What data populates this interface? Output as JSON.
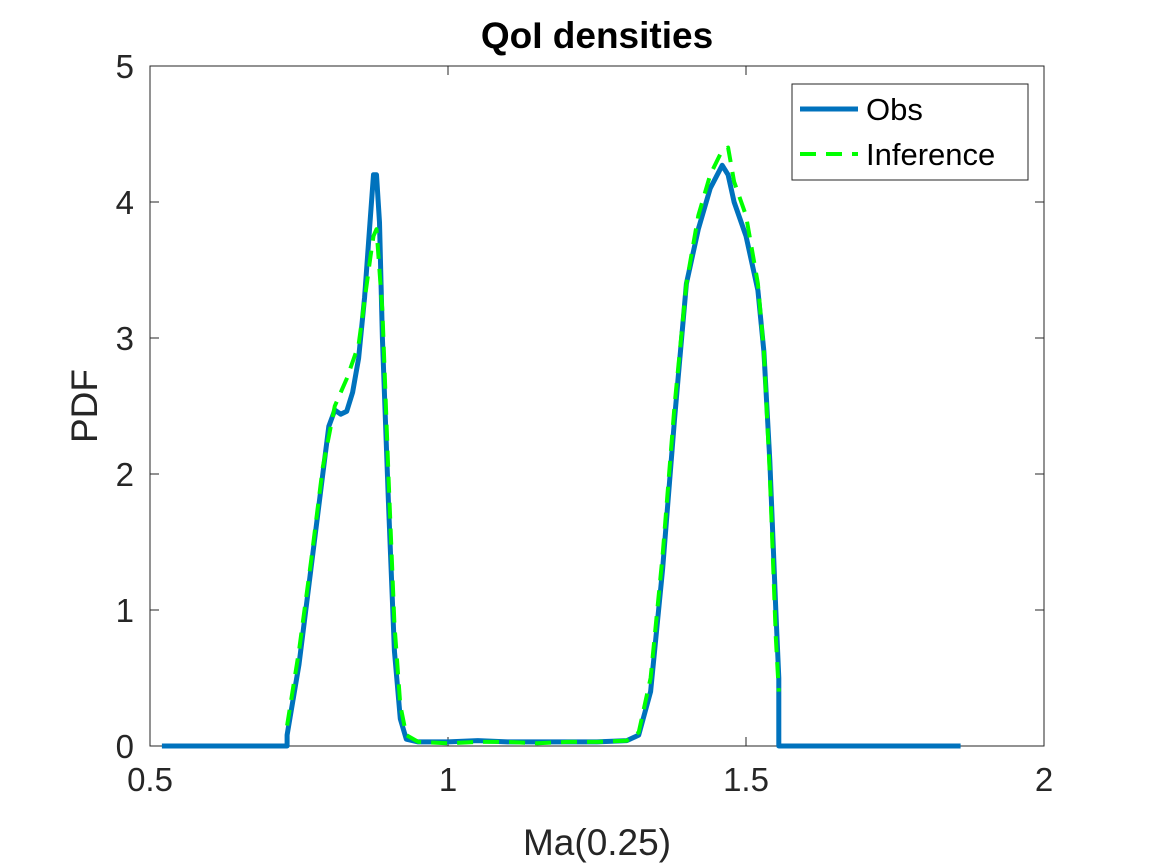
{
  "chart_data": {
    "type": "line",
    "title": "QoI densities",
    "xlabel": "Ma(0.25)",
    "ylabel": "PDF",
    "xlim": [
      0.5,
      2
    ],
    "ylim": [
      0,
      5
    ],
    "xticks": [
      0.5,
      1,
      1.5,
      2
    ],
    "xtick_labels": [
      "0.5",
      "1",
      "1.5",
      "2"
    ],
    "yticks": [
      0,
      1,
      2,
      3,
      4,
      5
    ],
    "ytick_labels": [
      "0",
      "1",
      "2",
      "3",
      "4",
      "5"
    ],
    "grid": false,
    "legend_position": "top-right",
    "series": [
      {
        "name": "Obs",
        "color": "#0072bd",
        "style": "solid",
        "x": [
          0.52,
          0.73,
          0.73,
          0.75,
          0.77,
          0.79,
          0.8,
          0.81,
          0.82,
          0.83,
          0.84,
          0.85,
          0.86,
          0.87,
          0.875,
          0.88,
          0.885,
          0.89,
          0.9,
          0.91,
          0.92,
          0.93,
          0.95,
          1.0,
          1.05,
          1.1,
          1.15,
          1.2,
          1.25,
          1.3,
          1.32,
          1.34,
          1.36,
          1.38,
          1.4,
          1.42,
          1.44,
          1.46,
          1.47,
          1.48,
          1.5,
          1.52,
          1.53,
          1.54,
          1.55,
          1.555,
          1.555,
          1.86
        ],
        "y": [
          0,
          0,
          0.08,
          0.6,
          1.3,
          2.0,
          2.35,
          2.47,
          2.44,
          2.46,
          2.6,
          2.85,
          3.3,
          3.9,
          4.2,
          4.2,
          3.85,
          3.0,
          1.8,
          0.7,
          0.2,
          0.05,
          0.03,
          0.03,
          0.04,
          0.03,
          0.03,
          0.03,
          0.03,
          0.04,
          0.08,
          0.4,
          1.3,
          2.4,
          3.4,
          3.8,
          4.1,
          4.27,
          4.2,
          4.0,
          3.75,
          3.35,
          2.9,
          2.1,
          1.0,
          0.5,
          0,
          0
        ]
      },
      {
        "name": "Inference",
        "color": "#00ff00",
        "style": "dashed",
        "x": [
          0.73,
          0.75,
          0.77,
          0.79,
          0.81,
          0.83,
          0.85,
          0.87,
          0.875,
          0.88,
          0.89,
          0.9,
          0.91,
          0.92,
          0.93,
          0.95,
          1.0,
          1.05,
          1.1,
          1.15,
          1.2,
          1.25,
          1.3,
          1.32,
          1.34,
          1.36,
          1.38,
          1.4,
          1.42,
          1.44,
          1.46,
          1.47,
          1.48,
          1.5,
          1.52,
          1.53,
          1.54,
          1.55,
          1.555
        ],
        "y": [
          0.15,
          0.7,
          1.35,
          2.05,
          2.5,
          2.7,
          2.95,
          3.6,
          3.75,
          3.8,
          3.2,
          2.0,
          0.9,
          0.3,
          0.08,
          0.03,
          0.02,
          0.03,
          0.03,
          0.02,
          0.03,
          0.03,
          0.04,
          0.1,
          0.5,
          1.4,
          2.5,
          3.4,
          3.9,
          4.2,
          4.38,
          4.4,
          4.15,
          3.9,
          3.4,
          2.9,
          2.0,
          0.8,
          0.4
        ]
      }
    ]
  }
}
